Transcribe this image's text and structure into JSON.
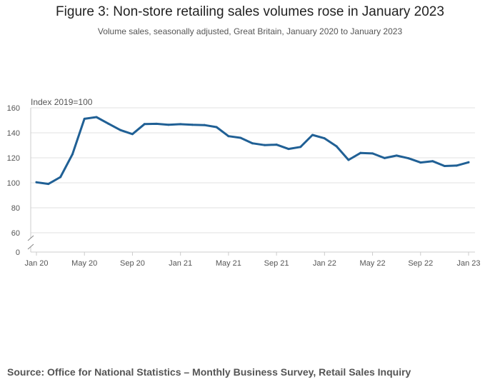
{
  "title": "Figure 3: Non-store retailing sales volumes rose in January 2023",
  "subtitle": "Volume sales, seasonally adjusted, Great Britain, January 2020 to January 2023",
  "source": "Source: Office for National Statistics – Monthly Business Survey, Retail Sales Inquiry",
  "colors": {
    "line": "#206095",
    "grid": "#e0e0e0",
    "axis": "#cccccc"
  },
  "chart_data": {
    "type": "line",
    "title": "Figure 3: Non-store retailing sales volumes rose in January 2023",
    "ylabel": "Index 2019=100",
    "xlabel": "",
    "ylim": [
      0,
      160
    ],
    "y_axis_break": [
      0,
      60
    ],
    "yticks": [
      0,
      60,
      80,
      100,
      120,
      140,
      160
    ],
    "xtick_labels": [
      "Jan 20",
      "May 20",
      "Sep 20",
      "Jan 21",
      "May 21",
      "Sep 21",
      "Jan 22",
      "May 22",
      "Sep 22",
      "Jan 23"
    ],
    "xtick_indices": [
      0,
      4,
      8,
      12,
      16,
      20,
      24,
      28,
      32,
      36
    ],
    "grid": true,
    "x": [
      "Jan 20",
      "Feb 20",
      "Mar 20",
      "Apr 20",
      "May 20",
      "Jun 20",
      "Jul 20",
      "Aug 20",
      "Sep 20",
      "Oct 20",
      "Nov 20",
      "Dec 20",
      "Jan 21",
      "Feb 21",
      "Mar 21",
      "Apr 21",
      "May 21",
      "Jun 21",
      "Jul 21",
      "Aug 21",
      "Sep 21",
      "Oct 21",
      "Nov 21",
      "Dec 21",
      "Jan 22",
      "Feb 22",
      "Mar 22",
      "Apr 22",
      "May 22",
      "Jun 22",
      "Jul 22",
      "Aug 22",
      "Sep 22",
      "Oct 22",
      "Nov 22",
      "Dec 22",
      "Jan 23"
    ],
    "series": [
      {
        "name": "Non-store retailing",
        "values": [
          100.4,
          99.1,
          104.6,
          122.8,
          151.2,
          152.6,
          147.3,
          142.2,
          139.0,
          147.0,
          147.2,
          146.4,
          146.9,
          146.4,
          146.2,
          144.6,
          137.3,
          136.0,
          131.6,
          130.2,
          130.5,
          127.1,
          128.7,
          138.3,
          135.6,
          129.2,
          118.3,
          123.9,
          123.5,
          119.8,
          121.8,
          119.6,
          116.2,
          117.3,
          113.4,
          113.8,
          116.4
        ]
      }
    ]
  }
}
